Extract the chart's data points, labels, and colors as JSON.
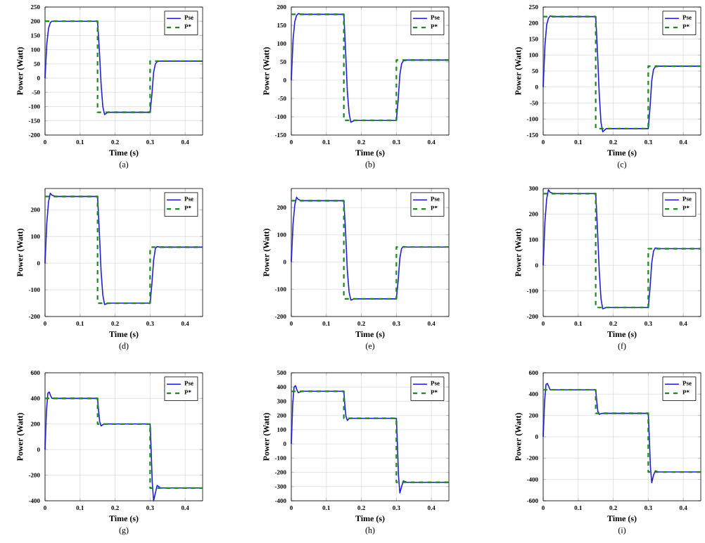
{
  "chart_data": [
    {
      "type": "line",
      "xlabel": "Time (s)",
      "ylabel": "Power (Watt)",
      "annotations": [
        "(a)"
      ],
      "xlim": [
        0,
        0.45
      ],
      "xticks": [
        0,
        0.1,
        0.2,
        0.3,
        0.4
      ],
      "ylim": [
        -200,
        250
      ],
      "yticks": [
        -200,
        -150,
        -100,
        -50,
        0,
        50,
        100,
        150,
        200,
        250
      ],
      "grid": true,
      "legend": "top right",
      "series": [
        {
          "name": "Pse",
          "color": "#1f1fd6",
          "line_style": "solid",
          "x": [
            0,
            0.005,
            0.01,
            0.015,
            0.02,
            0.03,
            0.15,
            0.155,
            0.16,
            0.165,
            0.17,
            0.18,
            0.3,
            0.305,
            0.31,
            0.315,
            0.32,
            0.33,
            0.45
          ],
          "values": [
            0,
            120,
            175,
            195,
            200,
            200,
            200,
            100,
            -20,
            -100,
            -128,
            -120,
            -120,
            -60,
            20,
            50,
            58,
            60,
            60
          ]
        },
        {
          "name": "P*",
          "color": "#1a8a1a",
          "line_style": "dashed",
          "x": [
            0,
            0.15,
            0.15,
            0.3,
            0.3,
            0.45
          ],
          "values": [
            200,
            200,
            -120,
            -120,
            60,
            60
          ]
        }
      ]
    },
    {
      "type": "line",
      "xlabel": "Time (s)",
      "ylabel": "Power (Watt)",
      "annotations": [
        "(b)"
      ],
      "xlim": [
        0,
        0.45
      ],
      "xticks": [
        0,
        0.1,
        0.2,
        0.3,
        0.4
      ],
      "ylim": [
        -150,
        200
      ],
      "yticks": [
        -150,
        -100,
        -50,
        0,
        50,
        100,
        150,
        200
      ],
      "grid": true,
      "legend": "top right",
      "series": [
        {
          "name": "Pse",
          "color": "#1f1fd6",
          "line_style": "solid",
          "x": [
            0,
            0.005,
            0.01,
            0.015,
            0.02,
            0.03,
            0.15,
            0.155,
            0.16,
            0.165,
            0.17,
            0.18,
            0.3,
            0.305,
            0.31,
            0.315,
            0.32,
            0.33,
            0.45
          ],
          "values": [
            0,
            110,
            160,
            177,
            182,
            180,
            180,
            80,
            -30,
            -90,
            -115,
            -110,
            -110,
            -55,
            15,
            45,
            53,
            55,
            55
          ]
        },
        {
          "name": "P*",
          "color": "#1a8a1a",
          "line_style": "dashed",
          "x": [
            0,
            0.15,
            0.15,
            0.3,
            0.3,
            0.45
          ],
          "values": [
            180,
            180,
            -110,
            -110,
            55,
            55
          ]
        }
      ]
    },
    {
      "type": "line",
      "xlabel": "Time (s)",
      "ylabel": "Power (Watt)",
      "annotations": [
        "(c)"
      ],
      "xlim": [
        0,
        0.45
      ],
      "xticks": [
        0,
        0.1,
        0.2,
        0.3,
        0.4
      ],
      "ylim": [
        -150,
        250
      ],
      "yticks": [
        -150,
        -100,
        -50,
        0,
        50,
        100,
        150,
        200,
        250
      ],
      "grid": true,
      "legend": "top right",
      "series": [
        {
          "name": "Pse",
          "color": "#1f1fd6",
          "line_style": "solid",
          "x": [
            0,
            0.005,
            0.01,
            0.015,
            0.02,
            0.03,
            0.15,
            0.155,
            0.16,
            0.165,
            0.17,
            0.18,
            0.3,
            0.305,
            0.31,
            0.315,
            0.32,
            0.33,
            0.45
          ],
          "values": [
            0,
            130,
            195,
            215,
            222,
            220,
            220,
            110,
            -20,
            -110,
            -140,
            -130,
            -130,
            -65,
            20,
            55,
            63,
            65,
            65
          ]
        },
        {
          "name": "P*",
          "color": "#1a8a1a",
          "line_style": "dashed",
          "x": [
            0,
            0.15,
            0.15,
            0.3,
            0.3,
            0.45
          ],
          "values": [
            220,
            220,
            -130,
            -130,
            65,
            65
          ]
        }
      ]
    },
    {
      "type": "line",
      "xlabel": "Time (s)",
      "ylabel": "Power (Watt)",
      "annotations": [
        "(d)"
      ],
      "xlim": [
        0,
        0.45
      ],
      "xticks": [
        0,
        0.1,
        0.2,
        0.3,
        0.4
      ],
      "ylim": [
        -200,
        280
      ],
      "yticks": [
        -200,
        -100,
        0,
        100,
        200
      ],
      "grid": true,
      "legend": "top right",
      "series": [
        {
          "name": "Pse",
          "color": "#1f1fd6",
          "line_style": "solid",
          "x": [
            0,
            0.005,
            0.01,
            0.015,
            0.02,
            0.03,
            0.15,
            0.155,
            0.16,
            0.165,
            0.17,
            0.18,
            0.3,
            0.305,
            0.31,
            0.315,
            0.32,
            0.33,
            0.45
          ],
          "values": [
            0,
            150,
            230,
            262,
            255,
            250,
            250,
            120,
            -30,
            -120,
            -155,
            -150,
            -150,
            -80,
            10,
            55,
            62,
            60,
            60
          ]
        },
        {
          "name": "P*",
          "color": "#1a8a1a",
          "line_style": "dashed",
          "x": [
            0,
            0.15,
            0.15,
            0.3,
            0.3,
            0.45
          ],
          "values": [
            250,
            250,
            -150,
            -150,
            60,
            60
          ]
        }
      ]
    },
    {
      "type": "line",
      "xlabel": "Time (s)",
      "ylabel": "Power (Watt)",
      "annotations": [
        "(e)"
      ],
      "xlim": [
        0,
        0.45
      ],
      "xticks": [
        0,
        0.1,
        0.2,
        0.3,
        0.4
      ],
      "ylim": [
        -200,
        270
      ],
      "yticks": [
        -200,
        -100,
        0,
        100,
        200
      ],
      "grid": true,
      "legend": "top right",
      "series": [
        {
          "name": "Pse",
          "color": "#1f1fd6",
          "line_style": "solid",
          "x": [
            0,
            0.005,
            0.01,
            0.015,
            0.02,
            0.03,
            0.15,
            0.155,
            0.16,
            0.165,
            0.17,
            0.18,
            0.3,
            0.305,
            0.31,
            0.315,
            0.32,
            0.33,
            0.45
          ],
          "values": [
            0,
            140,
            210,
            238,
            230,
            225,
            225,
            110,
            -30,
            -110,
            -140,
            -135,
            -135,
            -70,
            15,
            50,
            57,
            55,
            55
          ]
        },
        {
          "name": "P*",
          "color": "#1a8a1a",
          "line_style": "dashed",
          "x": [
            0,
            0.15,
            0.15,
            0.3,
            0.3,
            0.45
          ],
          "values": [
            225,
            225,
            -135,
            -135,
            55,
            55
          ]
        }
      ]
    },
    {
      "type": "line",
      "xlabel": "Time (s)",
      "ylabel": "Power (Watt)",
      "annotations": [
        "(f)"
      ],
      "xlim": [
        0,
        0.45
      ],
      "xticks": [
        0,
        0.1,
        0.2,
        0.3,
        0.4
      ],
      "ylim": [
        -200,
        300
      ],
      "yticks": [
        -200,
        -100,
        0,
        100,
        200,
        300
      ],
      "grid": true,
      "legend": "top right",
      "series": [
        {
          "name": "Pse",
          "color": "#1f1fd6",
          "line_style": "solid",
          "x": [
            0,
            0.005,
            0.01,
            0.015,
            0.02,
            0.03,
            0.15,
            0.155,
            0.16,
            0.165,
            0.17,
            0.18,
            0.3,
            0.305,
            0.31,
            0.315,
            0.32,
            0.33,
            0.45
          ],
          "values": [
            0,
            170,
            260,
            295,
            285,
            280,
            280,
            140,
            -20,
            -130,
            -170,
            -165,
            -165,
            -90,
            10,
            55,
            68,
            65,
            65
          ]
        },
        {
          "name": "P*",
          "color": "#1a8a1a",
          "line_style": "dashed",
          "x": [
            0,
            0.15,
            0.15,
            0.3,
            0.3,
            0.45
          ],
          "values": [
            280,
            280,
            -165,
            -165,
            65,
            65
          ]
        }
      ]
    },
    {
      "type": "line",
      "xlabel": "Time (s)",
      "ylabel": "Power (Watt)",
      "annotations": [
        "(g)"
      ],
      "xlim": [
        0,
        0.45
      ],
      "xticks": [
        0,
        0.1,
        0.2,
        0.3,
        0.4
      ],
      "ylim": [
        -400,
        600
      ],
      "yticks": [
        -400,
        -200,
        0,
        200,
        400,
        600
      ],
      "grid": true,
      "legend": "top right",
      "series": [
        {
          "name": "Pse",
          "color": "#1f1fd6",
          "line_style": "solid",
          "x": [
            0,
            0.004,
            0.008,
            0.012,
            0.016,
            0.02,
            0.03,
            0.15,
            0.153,
            0.156,
            0.16,
            0.165,
            0.17,
            0.3,
            0.303,
            0.306,
            0.31,
            0.315,
            0.32,
            0.33,
            0.45
          ],
          "values": [
            0,
            300,
            440,
            450,
            420,
            400,
            400,
            400,
            300,
            220,
            185,
            195,
            200,
            200,
            0,
            -250,
            -400,
            -340,
            -280,
            -300,
            -300
          ]
        },
        {
          "name": "P*",
          "color": "#1a8a1a",
          "line_style": "dashed",
          "x": [
            0,
            0.15,
            0.15,
            0.3,
            0.3,
            0.45
          ],
          "values": [
            400,
            400,
            200,
            200,
            -300,
            -300
          ]
        }
      ]
    },
    {
      "type": "line",
      "xlabel": "Time (s)",
      "ylabel": "Power (Watt)",
      "annotations": [
        "(h)"
      ],
      "xlim": [
        0,
        0.45
      ],
      "xticks": [
        0,
        0.1,
        0.2,
        0.3,
        0.4
      ],
      "ylim": [
        -400,
        500
      ],
      "yticks": [
        -400,
        -300,
        -200,
        -100,
        0,
        100,
        200,
        300,
        400,
        500
      ],
      "grid": true,
      "legend": "top right",
      "series": [
        {
          "name": "Pse",
          "color": "#1f1fd6",
          "line_style": "solid",
          "x": [
            0,
            0.004,
            0.008,
            0.012,
            0.016,
            0.02,
            0.03,
            0.15,
            0.153,
            0.156,
            0.16,
            0.165,
            0.17,
            0.3,
            0.303,
            0.306,
            0.31,
            0.315,
            0.32,
            0.33,
            0.45
          ],
          "values": [
            0,
            280,
            400,
            410,
            380,
            360,
            370,
            370,
            270,
            195,
            165,
            178,
            180,
            180,
            0,
            -220,
            -345,
            -300,
            -260,
            -270,
            -270
          ]
        },
        {
          "name": "P*",
          "color": "#1a8a1a",
          "line_style": "dashed",
          "x": [
            0,
            0.15,
            0.15,
            0.3,
            0.3,
            0.45
          ],
          "values": [
            370,
            370,
            180,
            180,
            -270,
            -270
          ]
        }
      ]
    },
    {
      "type": "line",
      "xlabel": "Time (s)",
      "ylabel": "Power (Watt)",
      "annotations": [
        "(i)"
      ],
      "xlim": [
        0,
        0.45
      ],
      "xticks": [
        0,
        0.1,
        0.2,
        0.3,
        0.4
      ],
      "ylim": [
        -600,
        600
      ],
      "yticks": [
        -600,
        -400,
        -200,
        0,
        200,
        400,
        600
      ],
      "grid": true,
      "legend": "top right",
      "series": [
        {
          "name": "Pse",
          "color": "#1f1fd6",
          "line_style": "solid",
          "x": [
            0,
            0.004,
            0.008,
            0.012,
            0.016,
            0.02,
            0.03,
            0.15,
            0.153,
            0.156,
            0.16,
            0.165,
            0.17,
            0.3,
            0.303,
            0.306,
            0.31,
            0.315,
            0.32,
            0.33,
            0.45
          ],
          "values": [
            0,
            330,
            490,
            500,
            470,
            440,
            440,
            440,
            330,
            240,
            210,
            218,
            220,
            220,
            0,
            -270,
            -430,
            -360,
            -320,
            -330,
            -330
          ]
        },
        {
          "name": "P*",
          "color": "#1a8a1a",
          "line_style": "dashed",
          "x": [
            0,
            0.15,
            0.15,
            0.3,
            0.3,
            0.45
          ],
          "values": [
            440,
            440,
            220,
            220,
            -330,
            -330
          ]
        }
      ]
    }
  ]
}
